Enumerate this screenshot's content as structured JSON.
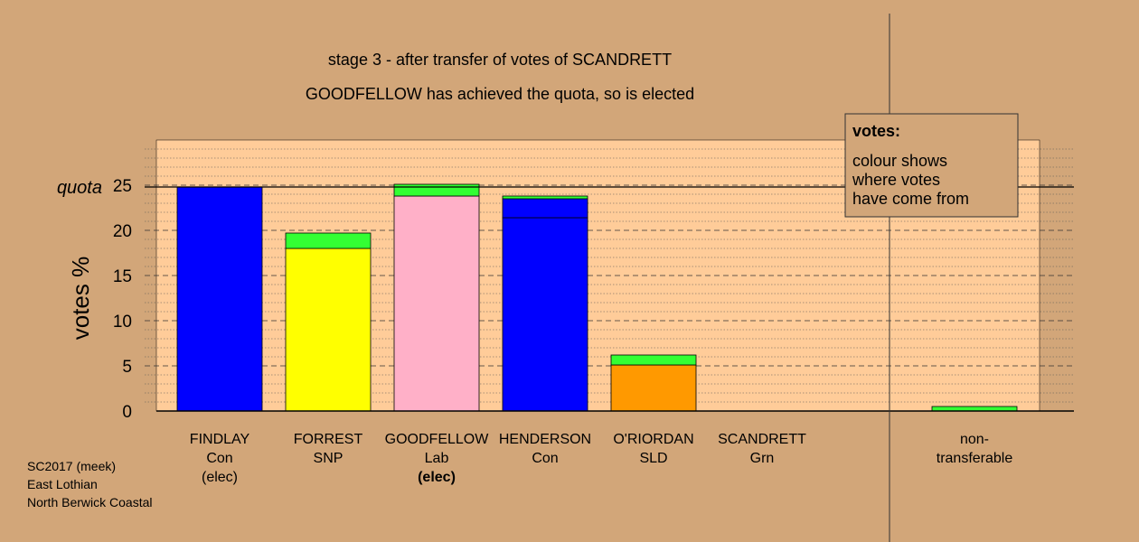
{
  "colors": {
    "background": "#D2A679",
    "plot_panel": "#FFCC99",
    "legend_box": "#D2A679",
    "green": "#33FF33",
    "dark_green": "#006400"
  },
  "chart_data": {
    "type": "bar",
    "title": "stage 3 - after transfer of votes of SCANDRETT",
    "subtitle": "GOODFELLOW has achieved the quota, so is elected",
    "ylabel": "votes %",
    "ylim": [
      0,
      30
    ],
    "yticks": [
      0,
      5,
      10,
      15,
      20,
      25
    ],
    "quota": 24.8,
    "quota_label": "quota",
    "candidates": [
      {
        "name": "FINDLAY",
        "party": "Con",
        "status": "(elec)",
        "status_bold": false,
        "segments": [
          {
            "value": 24.8,
            "color": "#0000FF"
          }
        ]
      },
      {
        "name": "FORREST",
        "party": "SNP",
        "status": "",
        "status_bold": false,
        "segments": [
          {
            "value": 18.0,
            "color": "#FFFF00"
          },
          {
            "value": 1.7,
            "color": "#33FF33"
          }
        ]
      },
      {
        "name": "GOODFELLOW",
        "party": "Lab",
        "status": "(elec)",
        "status_bold": true,
        "segments": [
          {
            "value": 23.8,
            "color": "#FFB0C8"
          },
          {
            "value": 1.3,
            "color": "#33FF33"
          }
        ]
      },
      {
        "name": "HENDERSON",
        "party": "Con",
        "status": "",
        "status_bold": false,
        "segments": [
          {
            "value": 21.4,
            "color": "#0000FF"
          },
          {
            "value": 2.1,
            "color": "#0000FF"
          },
          {
            "value": 0.3,
            "color": "#33FF33"
          }
        ]
      },
      {
        "name": "O'RIORDAN",
        "party": "SLD",
        "status": "",
        "status_bold": false,
        "segments": [
          {
            "value": 5.1,
            "color": "#FF9900"
          },
          {
            "value": 1.1,
            "color": "#33FF33"
          }
        ]
      },
      {
        "name": "SCANDRETT",
        "party": "Grn",
        "status": "",
        "status_bold": false,
        "segments": []
      }
    ],
    "nontransferable": {
      "line1": "non-",
      "line2": "transferable",
      "segments": [
        {
          "value": 0.5,
          "color": "#33FF33"
        }
      ]
    },
    "legend": {
      "title": "votes:",
      "lines": [
        "colour shows",
        "where votes",
        "have come from"
      ]
    }
  },
  "footer": [
    "SC2017 (meek)",
    "East Lothian",
    "North Berwick Coastal"
  ]
}
